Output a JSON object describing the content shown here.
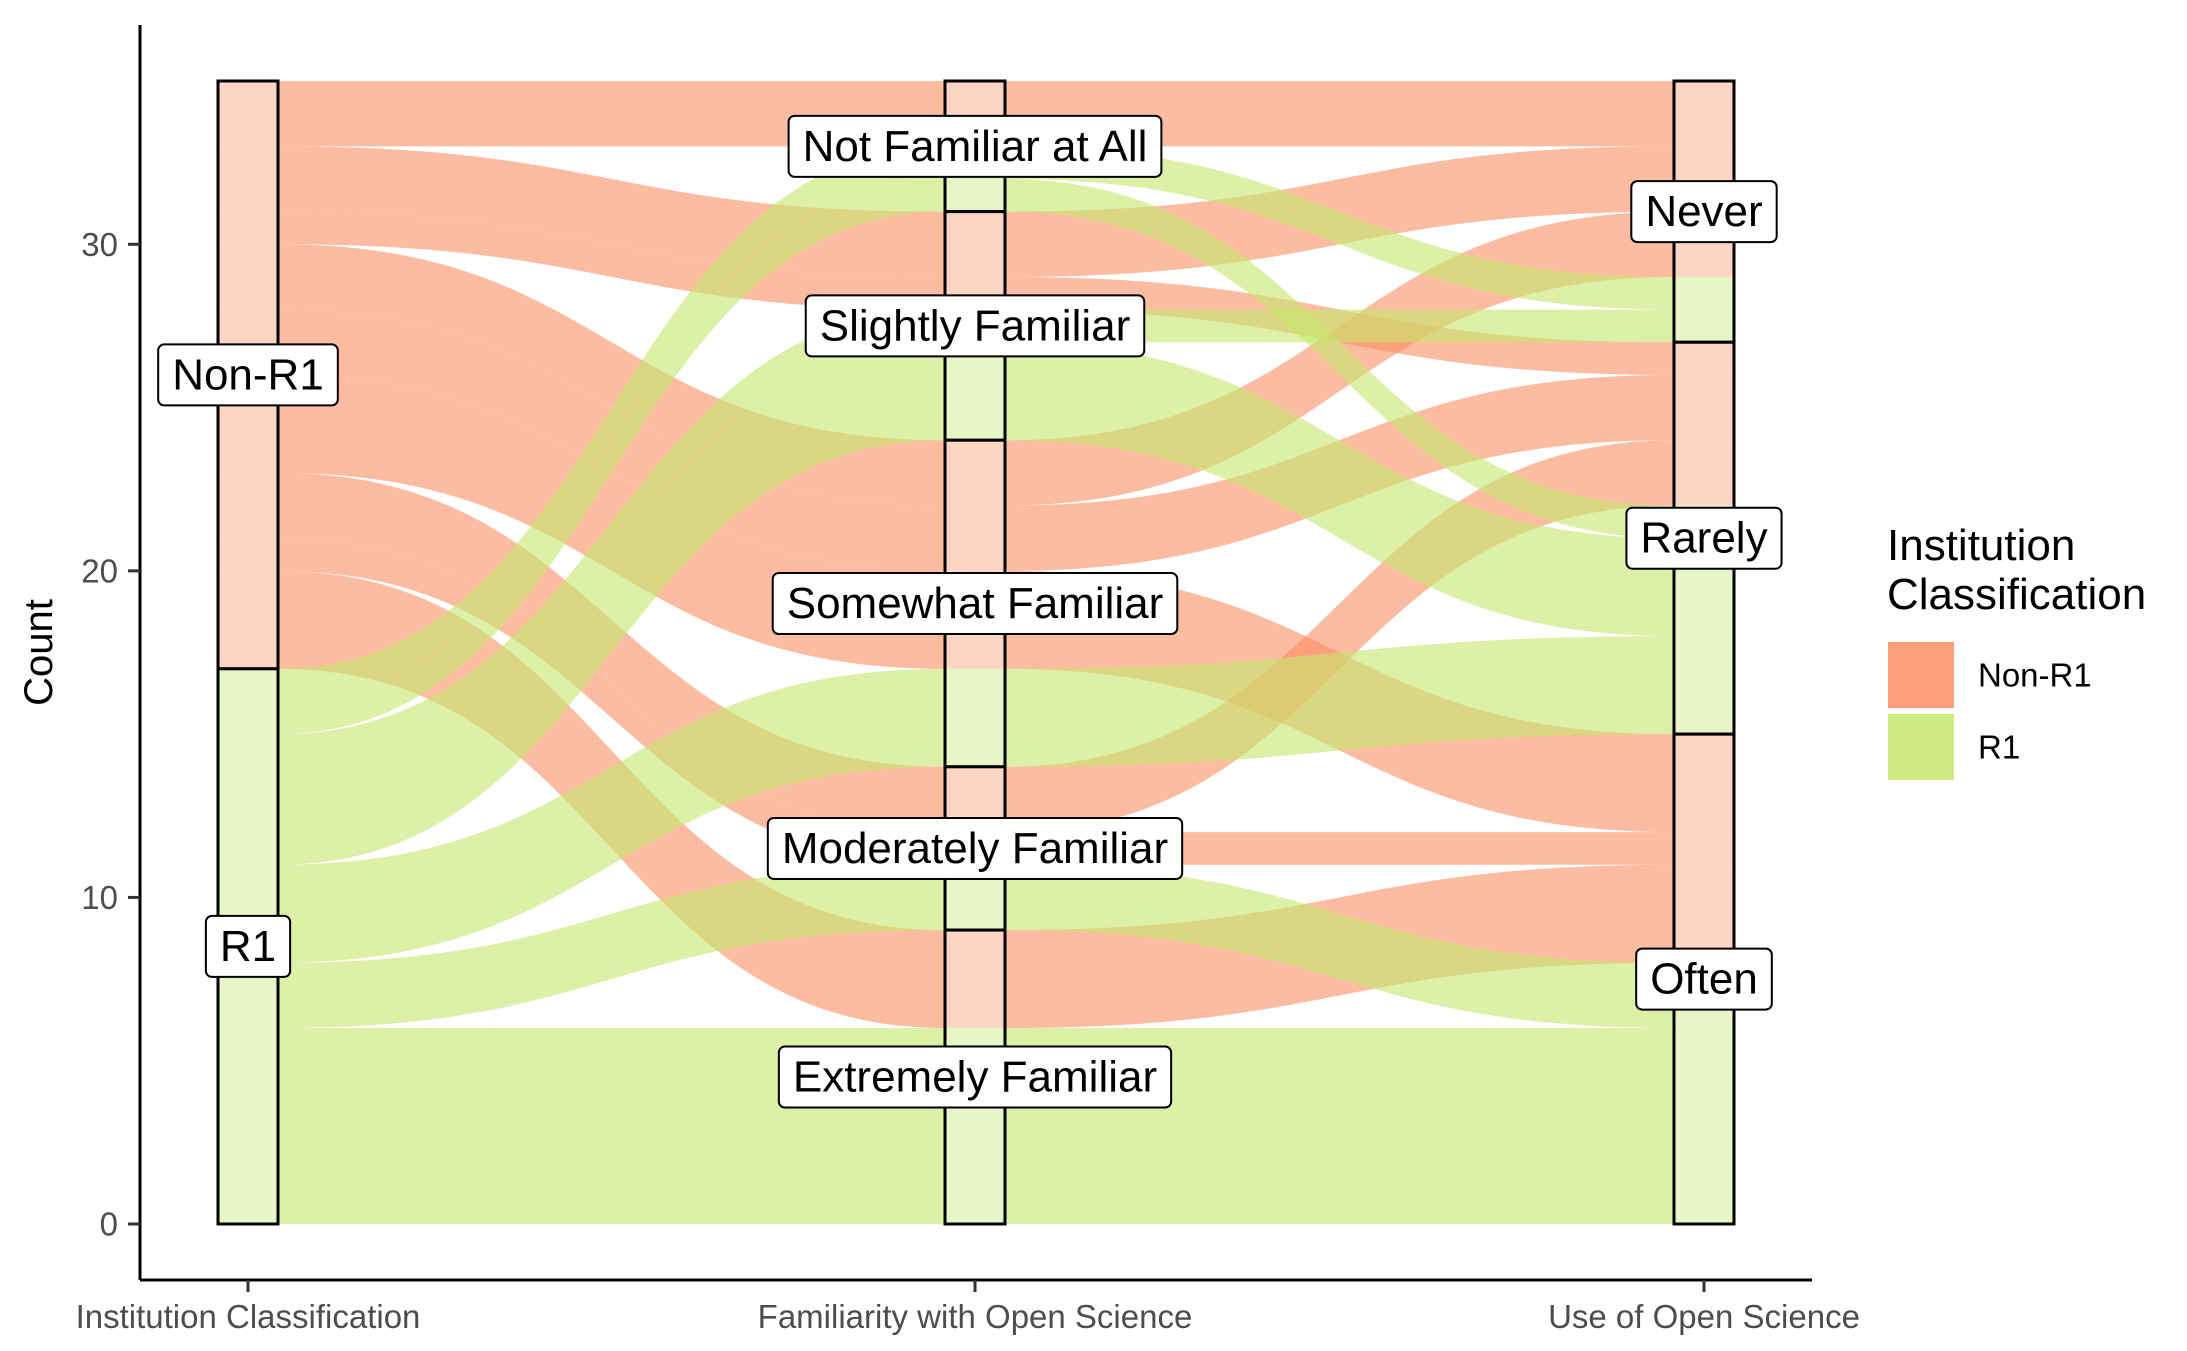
{
  "chart_data": {
    "type": "alluvial",
    "ylabel": "Count",
    "ylim": [
      0,
      35
    ],
    "y_ticks": [
      0,
      10,
      20,
      30
    ],
    "axes": [
      {
        "name": "Institution Classification",
        "strata": [
          "Non-R1",
          "R1"
        ]
      },
      {
        "name": "Familiarity with Open Science",
        "strata": [
          "Not Familiar at All",
          "Slightly Familiar",
          "Somewhat Familiar",
          "Moderately Familiar",
          "Extremely Familiar"
        ]
      },
      {
        "name": "Use of Open Science",
        "strata": [
          "Never",
          "Rarely",
          "Often"
        ]
      }
    ],
    "legend": {
      "title_lines": [
        "Institution",
        "Classification"
      ],
      "placement": "right",
      "entries": [
        {
          "name": "Non-R1",
          "color": "#fc8d62"
        },
        {
          "name": "R1",
          "color": "#c5e86c"
        }
      ]
    },
    "flows": [
      {
        "group": "Non-R1",
        "familiarity": "Not Familiar at All",
        "use": "Never",
        "count": 2
      },
      {
        "group": "Non-R1",
        "familiarity": "Slightly Familiar",
        "use": "Never",
        "count": 2
      },
      {
        "group": "Non-R1",
        "familiarity": "Slightly Familiar",
        "use": "Rarely",
        "count": 1
      },
      {
        "group": "Non-R1",
        "familiarity": "Somewhat Familiar",
        "use": "Never",
        "count": 2
      },
      {
        "group": "Non-R1",
        "familiarity": "Somewhat Familiar",
        "use": "Rarely",
        "count": 2
      },
      {
        "group": "Non-R1",
        "familiarity": "Somewhat Familiar",
        "use": "Often",
        "count": 3
      },
      {
        "group": "Non-R1",
        "familiarity": "Moderately Familiar",
        "use": "Rarely",
        "count": 2
      },
      {
        "group": "Non-R1",
        "familiarity": "Moderately Familiar",
        "use": "Often",
        "count": 1
      },
      {
        "group": "Non-R1",
        "familiarity": "Extremely Familiar",
        "use": "Often",
        "count": 3
      },
      {
        "group": "R1",
        "familiarity": "Not Familiar at All",
        "use": "Never",
        "count": 1
      },
      {
        "group": "R1",
        "familiarity": "Not Familiar at All",
        "use": "Rarely",
        "count": 1
      },
      {
        "group": "R1",
        "familiarity": "Slightly Familiar",
        "use": "Never",
        "count": 1
      },
      {
        "group": "R1",
        "familiarity": "Slightly Familiar",
        "use": "Rarely",
        "count": 3
      },
      {
        "group": "R1",
        "familiarity": "Somewhat Familiar",
        "use": "Rarely",
        "count": 3
      },
      {
        "group": "R1",
        "familiarity": "Moderately Familiar",
        "use": "Often",
        "count": 2
      },
      {
        "group": "R1",
        "familiarity": "Extremely Familiar",
        "use": "Often",
        "count": 6
      }
    ]
  }
}
